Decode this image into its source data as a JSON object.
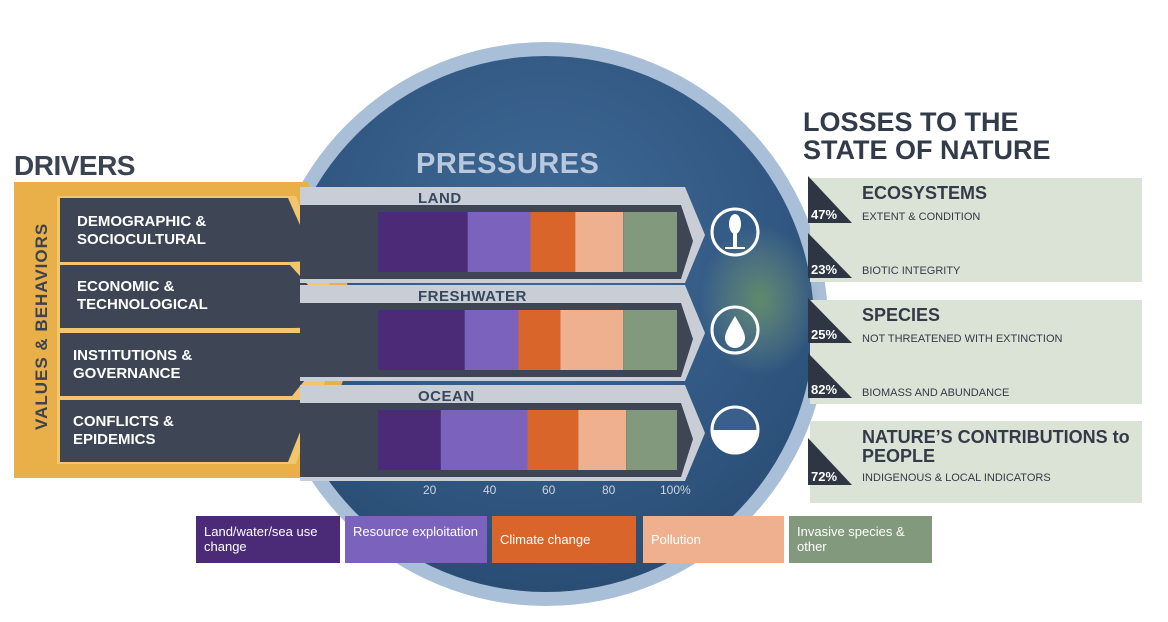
{
  "drivers": {
    "title": "DRIVERS",
    "values_behaviors": "VALUES & BEHAVIORS",
    "items": [
      {
        "label": "DEMOGRAPHIC & SOCIOCULTURAL"
      },
      {
        "label": "ECONOMIC & TECHNOLOGICAL"
      },
      {
        "label": "INSTITUTIONS & GOVERNANCE"
      },
      {
        "label": "CONFLICTS & EPIDEMICS"
      }
    ]
  },
  "pressures": {
    "title": "PRESSURES",
    "axis_ticks": [
      "20",
      "40",
      "60",
      "80",
      "100%"
    ]
  },
  "losses": {
    "title": "LOSSES TO THE STATE OF NATURE",
    "categories": [
      {
        "title": "ECOSYSTEMS",
        "items": [
          {
            "pct": "47%",
            "label": "EXTENT & CONDITION"
          },
          {
            "pct": "23%",
            "label": "BIOTIC INTEGRITY"
          }
        ]
      },
      {
        "title": "SPECIES",
        "items": [
          {
            "pct": "25%",
            "label": "NOT THREATENED WITH EXTINCTION"
          },
          {
            "pct": "82%",
            "label": "BIOMASS AND ABUNDANCE"
          }
        ]
      },
      {
        "title": "NATURE’S CONTRIBUTIONS to PEOPLE",
        "items": [
          {
            "pct": "72%",
            "label": "INDIGENOUS & LOCAL INDICATORS"
          }
        ]
      }
    ]
  },
  "legend": [
    {
      "label": "Land/water/sea use change",
      "color": "#4b2a78"
    },
    {
      "label": "Resource exploitation",
      "color": "#7a62bd"
    },
    {
      "label": "Climate change",
      "color": "#d9652a"
    },
    {
      "label": "Pollution",
      "color": "#eeb08e"
    },
    {
      "label": "Invasive species & other",
      "color": "#83997d"
    }
  ],
  "chart_data": {
    "type": "bar",
    "orientation": "horizontal",
    "stacked": true,
    "categories": [
      "LAND",
      "FRESHWATER",
      "OCEAN"
    ],
    "series": [
      {
        "name": "Land/water/sea use change",
        "color": "#4b2a78",
        "values": [
          30,
          29,
          21
        ]
      },
      {
        "name": "Resource exploitation",
        "color": "#7a62bd",
        "values": [
          21,
          18,
          29
        ]
      },
      {
        "name": "Climate change",
        "color": "#d9652a",
        "values": [
          15,
          14,
          17
        ]
      },
      {
        "name": "Pollution",
        "color": "#eeb08e",
        "values": [
          16,
          21,
          16
        ]
      },
      {
        "name": "Invasive species & other",
        "color": "#83997d",
        "values": [
          18,
          18,
          17
        ]
      }
    ],
    "xlim": [
      0,
      100
    ],
    "xticks": [
      20,
      40,
      60,
      80,
      100
    ],
    "icons": [
      "tree-icon",
      "water-drop-icon",
      "ocean-icon"
    ]
  }
}
